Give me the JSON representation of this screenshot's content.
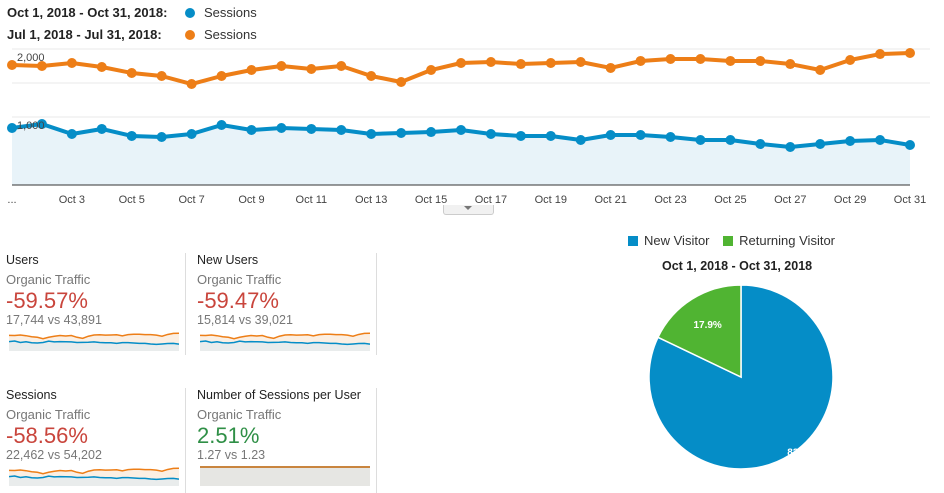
{
  "legend": {
    "rows": [
      {
        "range": "Oct 1, 2018 - Oct 31, 2018:",
        "series": "Sessions",
        "color": "#058dc7"
      },
      {
        "range": "Jul 1, 2018 - Jul 31, 2018:",
        "series": "Sessions",
        "color": "#ed7e17"
      }
    ]
  },
  "chart_data": [
    {
      "type": "line",
      "title": "Sessions",
      "x": [
        "Oct 1",
        "Oct 2",
        "Oct 3",
        "Oct 4",
        "Oct 5",
        "Oct 6",
        "Oct 7",
        "Oct 8",
        "Oct 9",
        "Oct 10",
        "Oct 11",
        "Oct 12",
        "Oct 13",
        "Oct 14",
        "Oct 15",
        "Oct 16",
        "Oct 17",
        "Oct 18",
        "Oct 19",
        "Oct 20",
        "Oct 21",
        "Oct 22",
        "Oct 23",
        "Oct 24",
        "Oct 25",
        "Oct 26",
        "Oct 27",
        "Oct 28",
        "Oct 29",
        "Oct 30",
        "Oct 31"
      ],
      "x_tick_labels": [
        "...",
        "Oct 3",
        "Oct 5",
        "Oct 7",
        "Oct 9",
        "Oct 11",
        "Oct 13",
        "Oct 15",
        "Oct 17",
        "Oct 19",
        "Oct 21",
        "Oct 23",
        "Oct 25",
        "Oct 27",
        "Oct 29",
        "Oct 31"
      ],
      "y_tick_labels": [
        "2,000",
        "1,000"
      ],
      "ylim": [
        0,
        2000
      ],
      "grid": true,
      "series": [
        {
          "name": "Oct 1, 2018 - Oct 31, 2018: Sessions",
          "color": "#058dc7",
          "area": true,
          "values": [
            838,
            897,
            750,
            824,
            721,
            706,
            750,
            882,
            809,
            838,
            824,
            809,
            750,
            765,
            779,
            809,
            750,
            721,
            721,
            662,
            735,
            735,
            706,
            662,
            662,
            603,
            559,
            603,
            647,
            662,
            588
          ]
        },
        {
          "name": "Jul 1, 2018 - Jul 31, 2018: Sessions",
          "color": "#ed7e17",
          "area": false,
          "values": [
            1765,
            1750,
            1794,
            1735,
            1647,
            1603,
            1485,
            1603,
            1691,
            1750,
            1706,
            1750,
            1603,
            1515,
            1691,
            1794,
            1809,
            1779,
            1794,
            1809,
            1721,
            1824,
            1853,
            1853,
            1824,
            1824,
            1779,
            1691,
            1838,
            1926,
            1941
          ]
        }
      ]
    },
    {
      "type": "pie",
      "title": "Oct 1, 2018 - Oct 31, 2018",
      "legend": "top",
      "categories": [
        "New Visitor",
        "Returning Visitor"
      ],
      "values": [
        82.1,
        17.9
      ],
      "labels": [
        "82.1%",
        "17.9%"
      ],
      "colors": [
        "#058dc7",
        "#50b432"
      ]
    }
  ],
  "cards": [
    {
      "title": "Users",
      "segment": "Organic Traffic",
      "change": "-59.57%",
      "trend": "down",
      "comparison": "17,744 vs 43,891"
    },
    {
      "title": "New Users",
      "segment": "Organic Traffic",
      "change": "-59.47%",
      "trend": "down",
      "comparison": "15,814 vs 39,021"
    },
    {
      "title": "Sessions",
      "segment": "Organic Traffic",
      "change": "-58.56%",
      "trend": "down",
      "comparison": "22,462 vs 54,202"
    },
    {
      "title": "Number of Sessions per User",
      "segment": "Organic Traffic",
      "change": "2.51%",
      "trend": "up",
      "comparison": "1.27 vs 1.23"
    }
  ],
  "colors": {
    "down": "#c9453c",
    "up": "#2f8f46",
    "current": "#058dc7",
    "previous": "#ed7e17"
  }
}
